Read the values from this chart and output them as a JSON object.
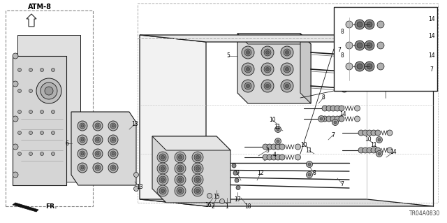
{
  "background_color": "#ffffff",
  "diagram_id": "TR04A0830",
  "atm_label": "ATM-8",
  "fr_label": "FR.",
  "fig_width": 6.4,
  "fig_height": 3.19,
  "dpi": 100,
  "line_color": "#1a1a1a",
  "gray1": "#555555",
  "gray2": "#888888",
  "gray3": "#bbbbbb",
  "gray_light": "#d8d8d8",
  "gray_med": "#aaaaaa",
  "dashed_color": "#777777",
  "part_fill": "#c8c8c8",
  "dark_part": "#444444",
  "text_color": "#000000",
  "label_fs": 5.5,
  "small_fs": 4.8
}
